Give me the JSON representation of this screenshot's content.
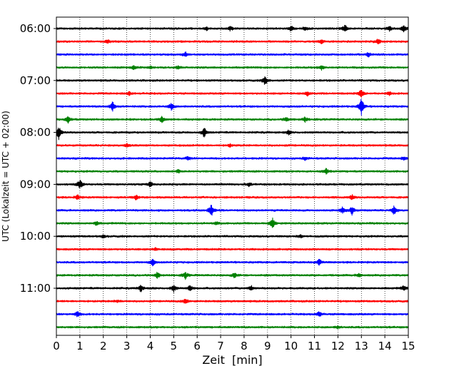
{
  "chart_data": {
    "type": "line",
    "title": "",
    "xlabel": "Zeit  [min]",
    "ylabel": "UTC (Lokalzeit = UTC + 02:00)",
    "xlim": [
      0,
      15
    ],
    "x_ticks": [
      "0",
      "1",
      "2",
      "3",
      "4",
      "5",
      "6",
      "7",
      "8",
      "9",
      "10",
      "11",
      "12",
      "13",
      "14",
      "15"
    ],
    "grid": "vertical dotted",
    "row_minutes": 15,
    "start_time": "06:00",
    "y_tick_labels": [
      "06:00",
      "07:00",
      "08:00",
      "09:00",
      "10:00",
      "11:00"
    ],
    "color_cycle": [
      "#000000",
      "#ff0000",
      "#0000ff",
      "#008000"
    ],
    "series": [
      {
        "start": "06:00",
        "events": [
          [
            6.4,
            0.35
          ],
          [
            7.4,
            0.45
          ],
          [
            10.0,
            0.55
          ],
          [
            10.6,
            0.4
          ],
          [
            12.3,
            0.8
          ],
          [
            14.2,
            0.5
          ],
          [
            14.8,
            0.8
          ]
        ]
      },
      {
        "start": "06:15",
        "events": [
          [
            2.2,
            0.35
          ],
          [
            11.3,
            0.45
          ],
          [
            13.7,
            0.55
          ]
        ]
      },
      {
        "start": "06:30",
        "events": [
          [
            5.5,
            0.5
          ],
          [
            13.3,
            0.45
          ]
        ]
      },
      {
        "start": "06:45",
        "events": [
          [
            3.3,
            0.4
          ],
          [
            4.0,
            0.25
          ],
          [
            5.2,
            0.35
          ],
          [
            11.3,
            0.5
          ]
        ]
      },
      {
        "start": "07:00",
        "events": [
          [
            8.9,
            1.0
          ]
        ]
      },
      {
        "start": "07:15",
        "events": [
          [
            3.1,
            0.35
          ],
          [
            10.7,
            0.4
          ],
          [
            13.0,
            0.9
          ],
          [
            14.2,
            0.3
          ]
        ]
      },
      {
        "start": "07:30",
        "events": [
          [
            2.4,
            1.0
          ],
          [
            4.9,
            0.8
          ],
          [
            13.0,
            1.9
          ]
        ]
      },
      {
        "start": "07:45",
        "events": [
          [
            0.5,
            0.7
          ],
          [
            4.5,
            0.7
          ],
          [
            9.8,
            0.55
          ],
          [
            10.6,
            0.5
          ]
        ]
      },
      {
        "start": "08:00",
        "events": [
          [
            0.1,
            1.4
          ],
          [
            6.3,
            1.0
          ],
          [
            9.9,
            0.4
          ]
        ]
      },
      {
        "start": "08:15",
        "events": [
          [
            3.0,
            0.35
          ],
          [
            7.4,
            0.3
          ]
        ]
      },
      {
        "start": "08:30",
        "events": [
          [
            5.6,
            0.3
          ],
          [
            10.6,
            0.3
          ],
          [
            14.8,
            0.3
          ]
        ]
      },
      {
        "start": "08:45",
        "events": [
          [
            5.2,
            0.35
          ],
          [
            11.5,
            0.6
          ]
        ]
      },
      {
        "start": "09:00",
        "events": [
          [
            1.0,
            1.1
          ],
          [
            4.0,
            0.6
          ],
          [
            8.2,
            0.4
          ]
        ]
      },
      {
        "start": "09:15",
        "events": [
          [
            0.9,
            0.45
          ],
          [
            3.4,
            0.5
          ],
          [
            12.6,
            0.5
          ]
        ]
      },
      {
        "start": "09:30",
        "events": [
          [
            6.6,
            1.3
          ],
          [
            12.2,
            0.7
          ],
          [
            12.6,
            0.9
          ],
          [
            14.4,
            1.0
          ]
        ]
      },
      {
        "start": "09:45",
        "events": [
          [
            1.7,
            0.45
          ],
          [
            6.8,
            0.3
          ],
          [
            9.2,
            1.2
          ]
        ]
      },
      {
        "start": "10:00",
        "events": [
          [
            2.0,
            0.3
          ],
          [
            10.4,
            0.3
          ]
        ]
      },
      {
        "start": "10:15",
        "events": [
          [
            4.2,
            0.25
          ]
        ]
      },
      {
        "start": "10:30",
        "events": [
          [
            4.1,
            0.7
          ],
          [
            11.2,
            0.7
          ]
        ]
      },
      {
        "start": "10:45",
        "events": [
          [
            4.3,
            0.6
          ],
          [
            5.5,
            0.7
          ],
          [
            7.6,
            0.6
          ],
          [
            12.9,
            0.35
          ]
        ]
      },
      {
        "start": "11:00",
        "events": [
          [
            3.6,
            0.7
          ],
          [
            5.0,
            0.7
          ],
          [
            5.7,
            0.6
          ],
          [
            8.3,
            0.5
          ],
          [
            14.8,
            0.5
          ]
        ]
      },
      {
        "start": "11:15",
        "events": [
          [
            5.5,
            0.55
          ],
          [
            2.6,
            0.25
          ]
        ]
      },
      {
        "start": "11:30",
        "events": [
          [
            0.9,
            0.6
          ],
          [
            11.2,
            0.6
          ]
        ]
      },
      {
        "start": "11:45",
        "events": [
          [
            12.0,
            0.25
          ]
        ]
      }
    ]
  }
}
